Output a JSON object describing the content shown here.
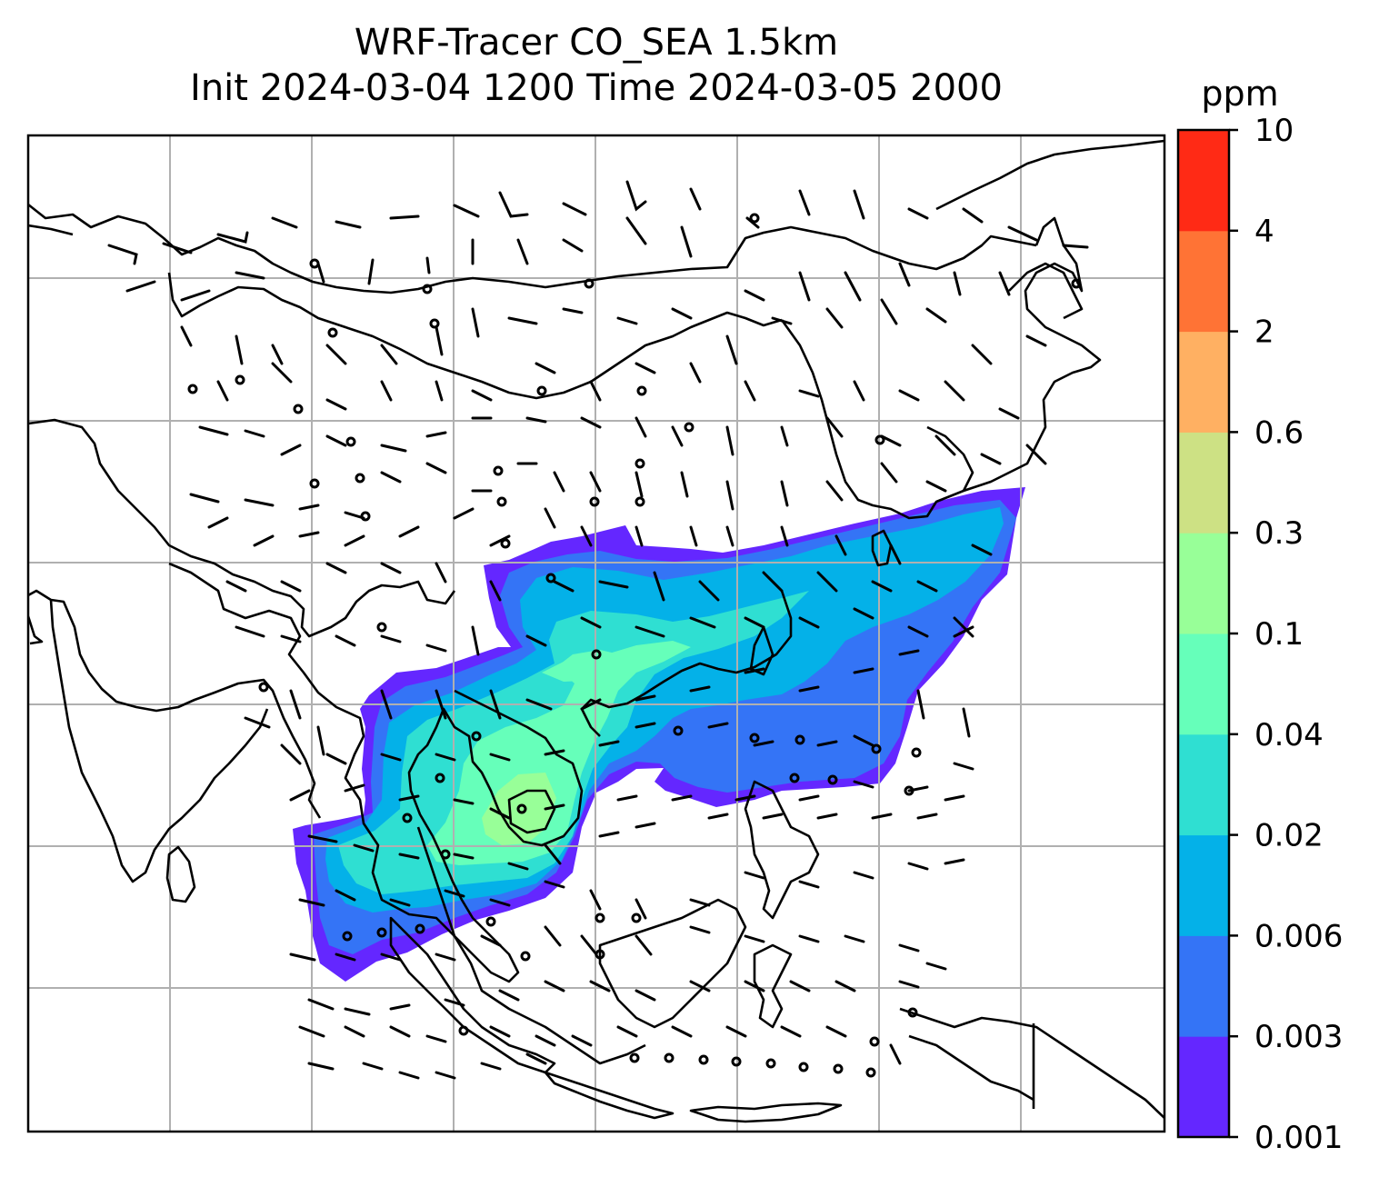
{
  "title_line1": "WRF-Tracer CO_SEA 1.5km",
  "title_line2": "Init 2024-03-04 1200 Time 2024-03-05 2000",
  "colorbar": {
    "unit": "ppm",
    "levels": [
      "0.001",
      "0.003",
      "0.006",
      "0.02",
      "0.04",
      "0.1",
      "0.3",
      "0.6",
      "2",
      "4",
      "10"
    ],
    "colors": [
      "#6427ff",
      "#3474f6",
      "#04b1e8",
      "#2fdfd2",
      "#66ffba",
      "#98ff98",
      "#cde184",
      "#ffb062",
      "#ff7335",
      "#ff2a15"
    ]
  },
  "map": {
    "grid_color": "#b0b0b0",
    "coast_color": "#000000",
    "barb_color": "#000000"
  }
}
